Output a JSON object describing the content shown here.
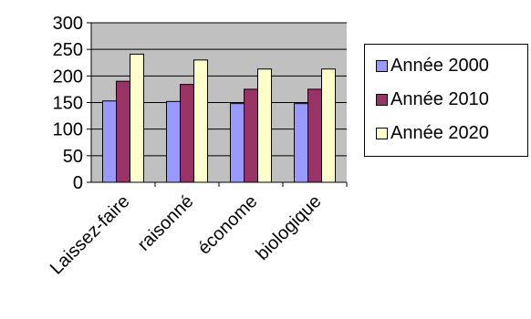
{
  "chart_data": {
    "type": "bar",
    "title": "",
    "xlabel": "",
    "ylabel": "",
    "categories": [
      "Laissez-faire",
      "raisonné",
      "économe",
      "biologique"
    ],
    "series": [
      {
        "name": "Année 2000",
        "values": [
          153,
          152,
          148,
          148
        ],
        "color": "#9999FF"
      },
      {
        "name": "Année 2010",
        "values": [
          190,
          184,
          175,
          175
        ],
        "color": "#993366"
      },
      {
        "name": "Année 2020",
        "values": [
          241,
          230,
          213,
          213
        ],
        "color": "#FFFFCC"
      }
    ],
    "ylim": [
      0,
      300
    ],
    "yticks": [
      "0",
      "50",
      "100",
      "150",
      "200",
      "250",
      "300"
    ],
    "grid": true,
    "legend": "right",
    "plot_background": "#C0C0C0"
  }
}
